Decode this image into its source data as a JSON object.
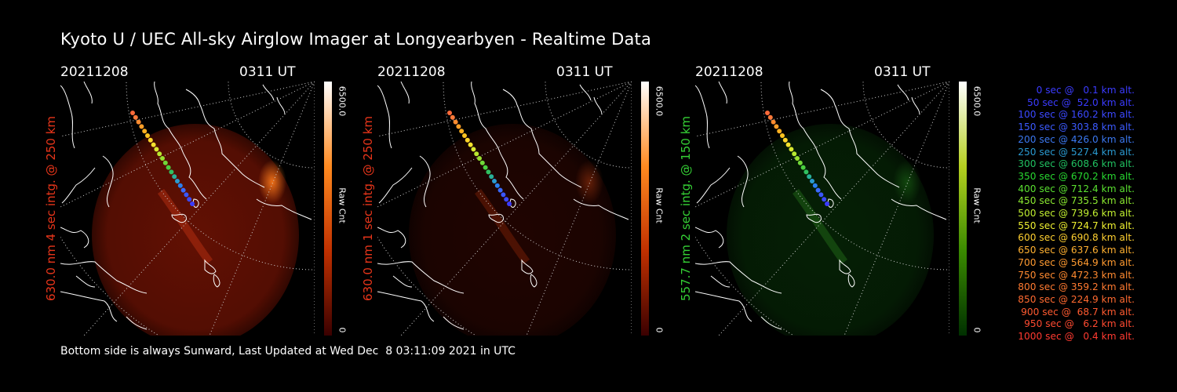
{
  "title": "Kyoto U / UEC All-sky Airglow Imager at Longyearbyen - Realtime Data",
  "footer": "Bottom side is always Sunward, Last Updated at Wed Dec  8 03:11:09 2021 in UTC",
  "panels": [
    {
      "date": "20211208",
      "time": "0311 UT",
      "label": "630.0 nm 4 sec intg. @ 250 km",
      "label_color": "#e8351a",
      "cbar_max": "6500.0",
      "cbar_unit": "Raw Cnt",
      "cbar_min": "0",
      "cbar_colors": [
        "#3a0000",
        "#c03000",
        "#ff8a20",
        "#ffffff"
      ],
      "emission": "red-strong"
    },
    {
      "date": "20211208",
      "time": "0311 UT",
      "label": "630.0 nm 1 sec intg. @ 250 km",
      "label_color": "#e8351a",
      "cbar_max": "6500.0",
      "cbar_unit": "Raw Cnt",
      "cbar_min": "0",
      "cbar_colors": [
        "#3a0000",
        "#c03000",
        "#ff8a20",
        "#ffffff"
      ],
      "emission": "red-faint"
    },
    {
      "date": "20211208",
      "time": "0311 UT",
      "label": "557.7 nm 2 sec intg. @ 150 km",
      "label_color": "#35d035",
      "cbar_max": "6500.0",
      "cbar_unit": "Raw Cnt",
      "cbar_min": "0",
      "cbar_colors": [
        "#003000",
        "#3a8a00",
        "#b5d020",
        "#ffffff"
      ],
      "emission": "green-faint"
    }
  ],
  "legend": [
    {
      "text": "0 sec @   0.1 km alt.",
      "color": "#3b3bff"
    },
    {
      "text": "50 sec @  52.0 km alt.",
      "color": "#3b3bff"
    },
    {
      "text": "100 sec @ 160.2 km alt.",
      "color": "#3b48ff"
    },
    {
      "text": "150 sec @ 303.8 km alt.",
      "color": "#3b5aff"
    },
    {
      "text": "200 sec @ 426.0 km alt.",
      "color": "#3b78f0"
    },
    {
      "text": "250 sec @ 527.4 km alt.",
      "color": "#2a9ad0"
    },
    {
      "text": "300 sec @ 608.6 km alt.",
      "color": "#20c060"
    },
    {
      "text": "350 sec @ 670.2 km alt.",
      "color": "#28d830"
    },
    {
      "text": "400 sec @ 712.4 km alt.",
      "color": "#5ae030"
    },
    {
      "text": "450 sec @ 735.5 km alt.",
      "color": "#8ae830"
    },
    {
      "text": "500 sec @ 739.6 km alt.",
      "color": "#c0ee30"
    },
    {
      "text": "550 sec @ 724.7 km alt.",
      "color": "#eef030"
    },
    {
      "text": "600 sec @ 690.8 km alt.",
      "color": "#ffd030"
    },
    {
      "text": "650 sec @ 637.6 km alt.",
      "color": "#ffb030"
    },
    {
      "text": "700 sec @ 564.9 km alt.",
      "color": "#ff9a30"
    },
    {
      "text": "750 sec @ 472.3 km alt.",
      "color": "#ff8a30"
    },
    {
      "text": "800 sec @ 359.2 km alt.",
      "color": "#ff7a30"
    },
    {
      "text": "850 sec @ 224.9 km alt.",
      "color": "#ff6a30"
    },
    {
      "text": "900 sec @  68.7 km alt.",
      "color": "#ff5a30"
    },
    {
      "text": "950 sec @   6.2 km alt.",
      "color": "#ff4a30"
    },
    {
      "text": "1000 sec @   0.4 km alt.",
      "color": "#ff3a30"
    }
  ]
}
